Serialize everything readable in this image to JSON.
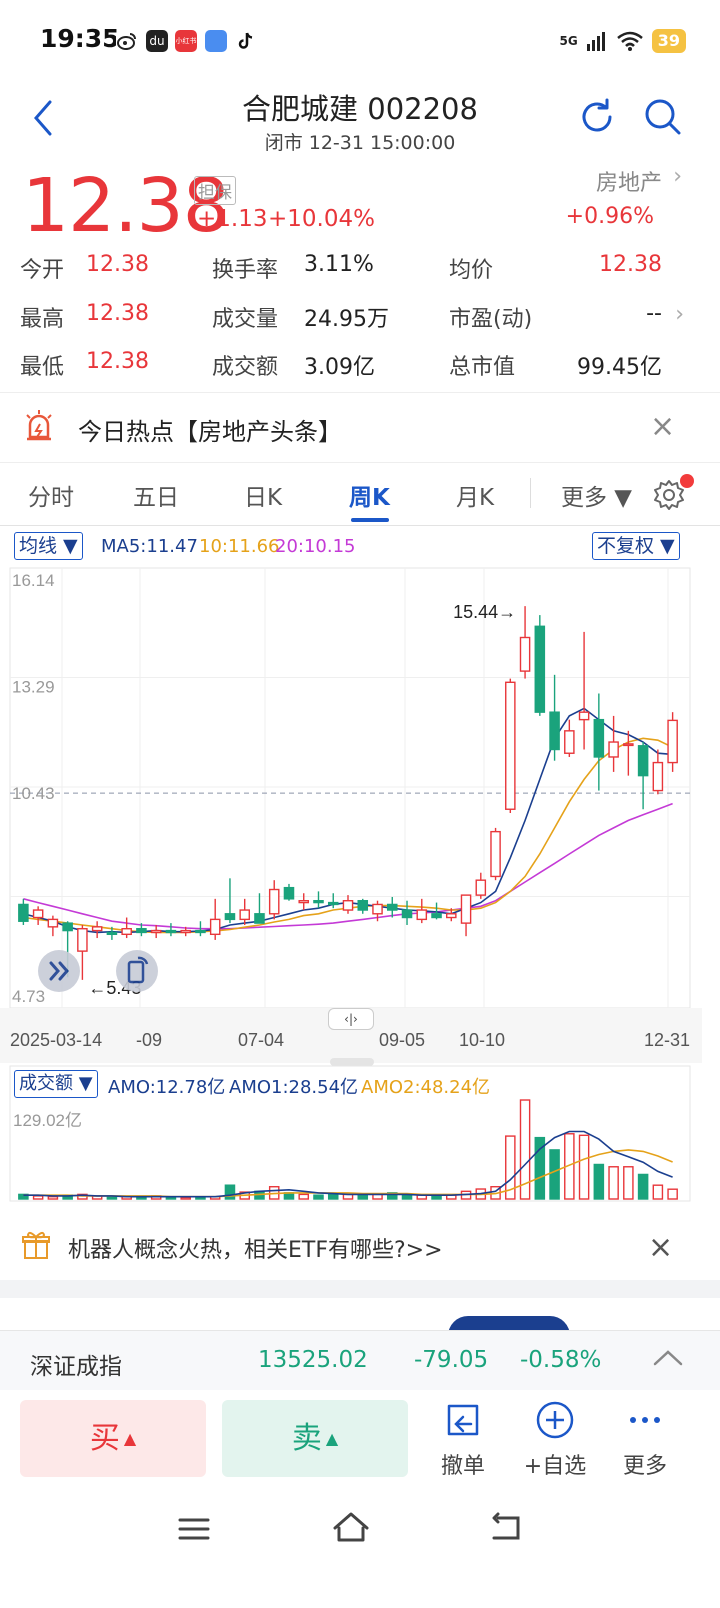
{
  "status_bar": {
    "time": "19:35",
    "battery": "39",
    "network": "5G",
    "app_icons": [
      "weibo-icon",
      "app-icon",
      "xiaohongshu-icon",
      "app-icon",
      "tiktok-icon"
    ],
    "app_badge_text": "小红书"
  },
  "header": {
    "title": "合肥城建 002208",
    "market_status": "闭市 12-31 15:00:00"
  },
  "price": {
    "last": "12.38",
    "margin_tag": "担保",
    "change": "+1.13",
    "change_pct": "+10.04%",
    "sector_name": "房地产",
    "sector_change": "+0.96%",
    "sector_arrow": "›"
  },
  "quotes": {
    "open_label": "今开",
    "open": "12.38",
    "high_label": "最高",
    "high": "12.38",
    "low_label": "最低",
    "low": "12.38",
    "turnover_rate_label": "换手率",
    "turnover_rate": "3.11%",
    "volume_label": "成交量",
    "volume": "24.95万",
    "amount_label": "成交额",
    "amount": "3.09亿",
    "avg_price_label": "均价",
    "avg_price": "12.38",
    "pe_label": "市盈(动)",
    "pe": "--",
    "market_cap_label": "总市值",
    "market_cap": "99.45亿"
  },
  "hotspot": {
    "text": "今日热点【房地产头条】",
    "close": "×"
  },
  "tabs": [
    {
      "label": "分时"
    },
    {
      "label": "五日"
    },
    {
      "label": "日K"
    },
    {
      "label": "周K",
      "active": true
    },
    {
      "label": "月K"
    },
    {
      "label": "更多 ▼"
    }
  ],
  "chart_toolbar": {
    "ma_selector": "均线 ▼",
    "ma5": "MA5:11.47",
    "ma10": "10:11.66",
    "ma20": "20:10.15",
    "adjust_selector": "不复权 ▼",
    "colors": {
      "ma5": "#1b3f8f",
      "ma10": "#e5a21a",
      "ma20": "#c43ad6",
      "up": "#e8363a",
      "down": "#1aa37c"
    }
  },
  "chart_data": [
    {
      "type": "candlestick",
      "period": "weekly",
      "y_ticks": [
        "16.14",
        "13.29",
        "10.43",
        "4.73"
      ],
      "ylim": [
        4.73,
        16.14
      ],
      "x_ticks": [
        "2025-03-14",
        "-09",
        "07-04",
        "09-05",
        "10-10",
        "12-31"
      ],
      "annotation_high": "15.44→",
      "annotation_low": "←5.43",
      "reference_line": 10.43,
      "candles": [
        {
          "o": 7.45,
          "h": 7.6,
          "l": 6.9,
          "c": 7.0
        },
        {
          "o": 7.1,
          "h": 7.4,
          "l": 6.9,
          "c": 7.3
        },
        {
          "o": 6.85,
          "h": 7.15,
          "l": 6.6,
          "c": 7.05
        },
        {
          "o": 6.95,
          "h": 7.0,
          "l": 5.5,
          "c": 6.75
        },
        {
          "o": 6.2,
          "h": 6.9,
          "l": 5.43,
          "c": 6.8
        },
        {
          "o": 6.75,
          "h": 7.0,
          "l": 6.55,
          "c": 6.85
        },
        {
          "o": 6.7,
          "h": 6.85,
          "l": 6.5,
          "c": 6.65
        },
        {
          "o": 6.65,
          "h": 7.1,
          "l": 6.55,
          "c": 6.8
        },
        {
          "o": 6.8,
          "h": 6.95,
          "l": 6.6,
          "c": 6.7
        },
        {
          "o": 6.7,
          "h": 6.9,
          "l": 6.55,
          "c": 6.75
        },
        {
          "o": 6.75,
          "h": 6.95,
          "l": 6.6,
          "c": 6.7
        },
        {
          "o": 6.7,
          "h": 6.85,
          "l": 6.6,
          "c": 6.75
        },
        {
          "o": 6.75,
          "h": 7.0,
          "l": 6.6,
          "c": 6.7
        },
        {
          "o": 6.65,
          "h": 7.6,
          "l": 6.5,
          "c": 7.05
        },
        {
          "o": 7.2,
          "h": 8.15,
          "l": 6.95,
          "c": 7.05
        },
        {
          "o": 7.05,
          "h": 7.6,
          "l": 6.9,
          "c": 7.3
        },
        {
          "o": 7.2,
          "h": 7.75,
          "l": 7.0,
          "c": 6.95
        },
        {
          "o": 7.2,
          "h": 8.1,
          "l": 7.05,
          "c": 7.85
        },
        {
          "o": 7.9,
          "h": 8.0,
          "l": 7.55,
          "c": 7.6
        },
        {
          "o": 7.5,
          "h": 7.75,
          "l": 7.3,
          "c": 7.55
        },
        {
          "o": 7.55,
          "h": 7.8,
          "l": 7.35,
          "c": 7.5
        },
        {
          "o": 7.5,
          "h": 7.75,
          "l": 7.35,
          "c": 7.45
        },
        {
          "o": 7.3,
          "h": 7.7,
          "l": 7.2,
          "c": 7.55
        },
        {
          "o": 7.55,
          "h": 7.6,
          "l": 7.2,
          "c": 7.3
        },
        {
          "o": 7.2,
          "h": 7.55,
          "l": 7.0,
          "c": 7.45
        },
        {
          "o": 7.45,
          "h": 7.65,
          "l": 7.1,
          "c": 7.3
        },
        {
          "o": 7.3,
          "h": 7.55,
          "l": 6.9,
          "c": 7.1
        },
        {
          "o": 7.05,
          "h": 7.6,
          "l": 6.95,
          "c": 7.3
        },
        {
          "o": 7.2,
          "h": 7.5,
          "l": 7.05,
          "c": 7.1
        },
        {
          "o": 7.1,
          "h": 7.35,
          "l": 7.0,
          "c": 7.2
        },
        {
          "o": 6.95,
          "h": 7.7,
          "l": 6.6,
          "c": 7.7
        },
        {
          "o": 7.7,
          "h": 8.3,
          "l": 7.6,
          "c": 8.1
        },
        {
          "o": 8.2,
          "h": 9.5,
          "l": 8.1,
          "c": 9.4
        },
        {
          "o": 10.0,
          "h": 13.5,
          "l": 9.9,
          "c": 13.4
        },
        {
          "o": 13.7,
          "h": 15.44,
          "l": 13.5,
          "c": 14.6
        },
        {
          "o": 14.9,
          "h": 15.2,
          "l": 12.5,
          "c": 12.6
        },
        {
          "o": 12.6,
          "h": 13.6,
          "l": 11.3,
          "c": 11.6
        },
        {
          "o": 11.5,
          "h": 12.4,
          "l": 11.4,
          "c": 12.1
        },
        {
          "o": 12.4,
          "h": 14.75,
          "l": 11.6,
          "c": 12.6
        },
        {
          "o": 12.4,
          "h": 13.1,
          "l": 10.5,
          "c": 11.4
        },
        {
          "o": 11.4,
          "h": 12.5,
          "l": 11.0,
          "c": 11.8
        },
        {
          "o": 11.75,
          "h": 12.1,
          "l": 10.9,
          "c": 11.75
        },
        {
          "o": 11.7,
          "h": 11.8,
          "l": 10.0,
          "c": 10.9
        },
        {
          "o": 10.5,
          "h": 11.6,
          "l": 10.4,
          "c": 11.25
        },
        {
          "o": 11.25,
          "h": 12.6,
          "l": 11.0,
          "c": 12.38
        }
      ],
      "ma5": [
        7.2,
        7.1,
        7.0,
        6.85,
        6.75,
        6.7,
        6.72,
        6.7,
        6.72,
        6.75,
        6.72,
        6.72,
        6.74,
        6.78,
        6.9,
        6.95,
        7.0,
        7.1,
        7.2,
        7.3,
        7.35,
        7.45,
        7.5,
        7.45,
        7.4,
        7.35,
        7.3,
        7.28,
        7.25,
        7.2,
        7.35,
        7.5,
        7.8,
        8.7,
        9.7,
        10.8,
        11.9,
        12.5,
        12.7,
        12.4,
        12.1,
        12.0,
        11.8,
        11.5,
        11.47
      ],
      "ma10": [
        7.1,
        7.05,
        7.0,
        6.95,
        6.9,
        6.85,
        6.8,
        6.75,
        6.72,
        6.7,
        6.7,
        6.7,
        6.72,
        6.74,
        6.78,
        6.84,
        6.9,
        6.98,
        7.05,
        7.15,
        7.2,
        7.3,
        7.35,
        7.4,
        7.42,
        7.42,
        7.4,
        7.38,
        7.35,
        7.3,
        7.3,
        7.35,
        7.5,
        7.8,
        8.2,
        8.8,
        9.5,
        10.2,
        10.8,
        11.3,
        11.6,
        11.8,
        11.9,
        11.85,
        11.66
      ],
      "ma20": [
        7.6,
        7.5,
        7.4,
        7.3,
        7.2,
        7.1,
        7.0,
        6.95,
        6.9,
        6.88,
        6.85,
        6.82,
        6.8,
        6.8,
        6.8,
        6.82,
        6.84,
        6.86,
        6.88,
        6.9,
        6.92,
        6.95,
        7.0,
        7.05,
        7.1,
        7.15,
        7.2,
        7.22,
        7.25,
        7.3,
        7.35,
        7.4,
        7.55,
        7.8,
        8.05,
        8.3,
        8.55,
        8.8,
        9.05,
        9.3,
        9.5,
        9.7,
        9.85,
        10.0,
        10.15
      ]
    },
    {
      "type": "bar",
      "name": "成交额",
      "y_tick": "129.02亿",
      "ylim": [
        0,
        129.02
      ],
      "values": [
        6,
        4,
        3,
        5,
        6,
        4,
        3,
        3,
        3,
        4,
        3,
        2,
        2,
        3,
        18,
        9,
        10,
        16,
        8,
        6,
        5,
        7,
        6,
        5,
        6,
        8,
        5,
        5,
        4,
        5,
        10,
        13,
        16,
        82,
        129,
        80,
        64,
        85,
        83,
        45,
        42,
        42,
        32,
        18,
        12.78
      ],
      "amo1": [
        5,
        5,
        4,
        4,
        5,
        4,
        4,
        3,
        3,
        3,
        3,
        3,
        3,
        3,
        5,
        8,
        10,
        11,
        12,
        10,
        8,
        7,
        6,
        6,
        6,
        6,
        6,
        5,
        5,
        5,
        6,
        7,
        10,
        25,
        45,
        65,
        80,
        88,
        88,
        78,
        62,
        55,
        48,
        36,
        28.54
      ],
      "amo2": [
        5,
        5,
        5,
        5,
        4,
        4,
        4,
        4,
        4,
        4,
        3,
        3,
        3,
        3,
        4,
        5,
        6,
        7,
        8,
        8,
        8,
        8,
        8,
        7,
        7,
        7,
        7,
        6,
        6,
        6,
        6,
        6,
        7,
        12,
        20,
        28,
        36,
        44,
        52,
        58,
        62,
        64,
        62,
        56,
        48.24
      ]
    }
  ],
  "volume_toolbar": {
    "selector": "成交额 ▼",
    "amo": "AMO:12.78亿",
    "amo1": "AMO1:28.54亿",
    "amo2": "AMO2:48.24亿"
  },
  "promo": {
    "text": "机器人概念火热，相关ETF有哪些?>>",
    "close": "×"
  },
  "index_bar": {
    "name": "深证成指",
    "value": "13525.02",
    "change": "-79.05",
    "change_pct": "-0.58%"
  },
  "actions": {
    "buy": "买",
    "sell": "卖",
    "cancel_order": "撤单",
    "add_watchlist": "+自选",
    "more": "更多"
  }
}
